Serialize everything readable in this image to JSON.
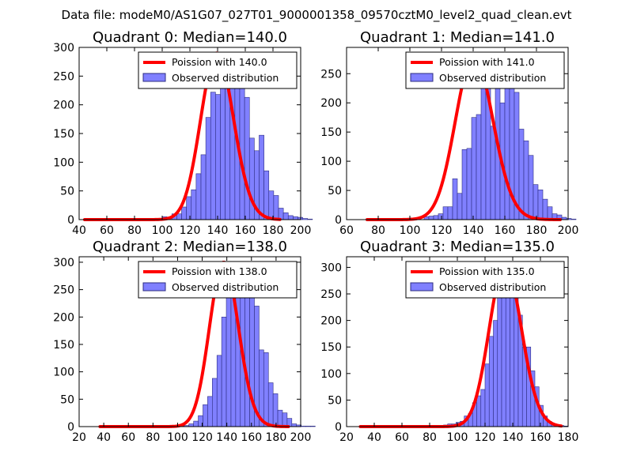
{
  "suptitle": "Data file: modeM0/AS1G07_027T01_9000001358_09570cztM0_level2_quad_clean.evt",
  "colors": {
    "fit": "#ff0000",
    "bars": "#8080ff",
    "bar_edge": "#2d2d80"
  },
  "chart_data": [
    {
      "type": "bar",
      "title": "Quadrant 0: Median=140.0",
      "xlim": [
        40,
        200
      ],
      "ylim": [
        0,
        300
      ],
      "xticks": [
        40,
        60,
        80,
        100,
        120,
        140,
        160,
        180,
        200
      ],
      "yticks": [
        0,
        50,
        100,
        150,
        200,
        250,
        300
      ],
      "legend": [
        "Poission with 140.0",
        "Observed distribution"
      ],
      "legend_position": "top-right",
      "hist": {
        "start": 44,
        "bin_width": 3.5,
        "values": [
          1,
          0,
          0,
          0,
          0,
          0,
          0,
          0,
          0,
          0,
          0,
          0,
          0,
          0,
          1,
          2,
          5,
          4,
          10,
          10,
          22,
          40,
          52,
          80,
          113,
          178,
          222,
          218,
          258,
          255,
          290,
          278,
          240,
          213,
          142,
          120,
          147,
          85,
          50,
          42,
          20,
          12,
          7,
          5,
          4,
          2,
          1
        ]
      },
      "fit": {
        "mean": 140,
        "x_range": [
          44,
          185
        ]
      }
    },
    {
      "type": "bar",
      "title": "Quadrant 1: Median=141.0",
      "xlim": [
        60,
        200
      ],
      "ylim": [
        0,
        295
      ],
      "xticks": [
        60,
        80,
        100,
        120,
        140,
        160,
        180,
        200
      ],
      "yticks": [
        0,
        50,
        100,
        150,
        200,
        250
      ],
      "legend": [
        "Poission with 141.0",
        "Observed distribution"
      ],
      "legend_position": "top-right",
      "hist": {
        "start": 73,
        "bin_width": 3,
        "values": [
          1,
          0,
          0,
          0,
          0,
          0,
          0,
          0,
          0,
          0,
          0,
          0,
          5,
          6,
          7,
          10,
          22,
          22,
          70,
          45,
          120,
          122,
          175,
          180,
          270,
          255,
          160,
          235,
          200,
          280,
          225,
          218,
          155,
          135,
          110,
          60,
          51,
          35,
          22,
          10,
          8,
          4,
          2,
          1
        ]
      },
      "fit": {
        "mean": 141,
        "x_range": [
          73,
          195
        ]
      }
    },
    {
      "type": "bar",
      "title": "Quadrant 2: Median=138.0",
      "xlim": [
        20,
        200
      ],
      "ylim": [
        0,
        310
      ],
      "xticks": [
        20,
        40,
        60,
        80,
        100,
        120,
        140,
        160,
        180,
        200
      ],
      "yticks": [
        0,
        50,
        100,
        150,
        200,
        250,
        300
      ],
      "legend": [
        "Poission with 138.0",
        "Observed distribution"
      ],
      "legend_position": "top-right",
      "hist": {
        "start": 37,
        "bin_width": 3.8,
        "values": [
          1,
          0,
          0,
          0,
          0,
          0,
          0,
          0,
          0,
          0,
          0,
          0,
          0,
          0,
          0,
          0,
          0,
          1,
          2,
          5,
          10,
          20,
          40,
          55,
          88,
          130,
          200,
          250,
          270,
          300,
          295,
          275,
          250,
          220,
          140,
          135,
          80,
          60,
          30,
          25,
          15,
          5,
          3,
          1,
          1,
          1
        ]
      },
      "fit": {
        "mean": 138,
        "x_range": [
          37,
          190
        ]
      }
    },
    {
      "type": "bar",
      "title": "Quadrant 3: Median=135.0",
      "xlim": [
        20,
        180
      ],
      "ylim": [
        0,
        320
      ],
      "xticks": [
        20,
        40,
        60,
        80,
        100,
        120,
        140,
        160,
        180
      ],
      "yticks": [
        0,
        50,
        100,
        150,
        200,
        250,
        300
      ],
      "legend": [
        "Poission with 135.0",
        "Observed distribution"
      ],
      "legend_position": "top-right",
      "hist": {
        "start": 30,
        "bin_width": 3,
        "values": [
          1,
          0,
          0,
          0,
          0,
          0,
          0,
          0,
          0,
          0,
          0,
          0,
          0,
          0,
          0,
          0,
          0,
          0,
          1,
          2,
          3,
          5,
          5,
          8,
          10,
          20,
          25,
          45,
          58,
          70,
          118,
          170,
          200,
          245,
          280,
          305,
          290,
          250,
          210,
          150,
          150,
          105,
          75,
          40,
          20,
          10,
          5,
          3,
          2,
          1
        ]
      },
      "fit": {
        "mean": 135,
        "x_range": [
          30,
          175
        ]
      }
    }
  ]
}
